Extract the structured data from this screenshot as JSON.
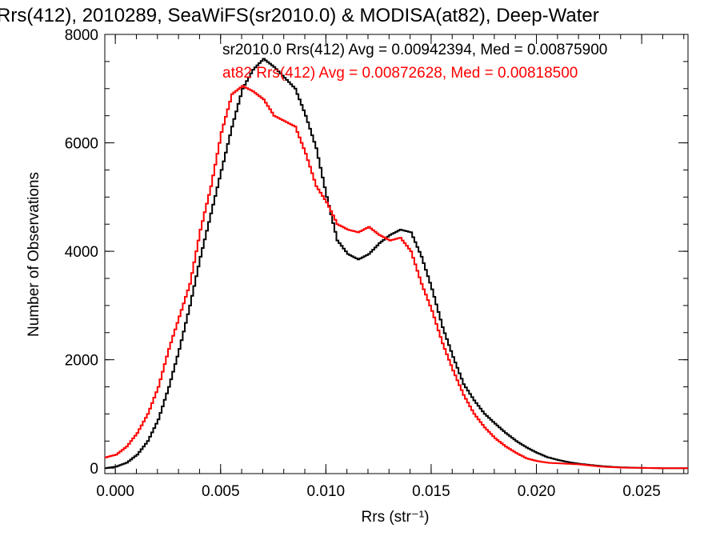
{
  "chart_data": {
    "type": "line",
    "title": "Rrs(412), 2010289, SeaWiFS(sr2010.0) & MODISA(at82), Deep-Water",
    "xlabel": "Rrs (str⁻¹)",
    "ylabel": "Number of Observations",
    "xlim": [
      -0.0005,
      0.0272
    ],
    "ylim": [
      -100,
      8000
    ],
    "x_ticks": [
      0.0,
      0.005,
      0.01,
      0.015,
      0.02,
      0.025
    ],
    "x_tick_labels": [
      "0.000",
      "0.005",
      "0.010",
      "0.015",
      "0.020",
      "0.025"
    ],
    "y_ticks": [
      0,
      2000,
      4000,
      6000,
      8000
    ],
    "y_tick_labels": [
      "0",
      "2000",
      "4000",
      "6000",
      "8000"
    ],
    "grid": false,
    "step": true,
    "annotations": [
      {
        "text": "sr2010.0 Rrs(412) Avg = 0.00942394, Med = 0.00875900",
        "color": "#000000"
      },
      {
        "text": "at82 Rrs(412) Avg = 0.00872628, Med = 0.00818500",
        "color": "#ff0000"
      }
    ],
    "series": [
      {
        "color": "#000000",
        "x": [
          -0.0005,
          0.0,
          0.0005,
          0.001,
          0.0015,
          0.002,
          0.0025,
          0.003,
          0.0035,
          0.004,
          0.0045,
          0.005,
          0.0055,
          0.006,
          0.0065,
          0.007,
          0.0075,
          0.008,
          0.0085,
          0.009,
          0.0095,
          0.01,
          0.0105,
          0.011,
          0.0115,
          0.012,
          0.0125,
          0.013,
          0.0135,
          0.014,
          0.0145,
          0.015,
          0.0155,
          0.016,
          0.0165,
          0.017,
          0.0175,
          0.018,
          0.0185,
          0.019,
          0.0195,
          0.02,
          0.0205,
          0.021,
          0.0215,
          0.022,
          0.0225,
          0.023,
          0.0235,
          0.024,
          0.025,
          0.026,
          0.0272
        ],
        "y": [
          0,
          30,
          100,
          250,
          500,
          900,
          1500,
          2200,
          3000,
          3900,
          4700,
          5500,
          6300,
          7000,
          7350,
          7550,
          7400,
          7200,
          7000,
          6500,
          5900,
          5000,
          4200,
          3950,
          3850,
          3950,
          4150,
          4300,
          4400,
          4350,
          3900,
          3300,
          2600,
          2050,
          1550,
          1250,
          1000,
          820,
          650,
          500,
          380,
          280,
          200,
          150,
          110,
          80,
          60,
          40,
          25,
          15,
          5,
          0,
          0
        ]
      },
      {
        "color": "#ff0000",
        "x": [
          -0.0005,
          0.0,
          0.0005,
          0.001,
          0.0015,
          0.002,
          0.0025,
          0.003,
          0.0035,
          0.004,
          0.0045,
          0.005,
          0.0055,
          0.006,
          0.0065,
          0.007,
          0.0075,
          0.008,
          0.0085,
          0.009,
          0.0095,
          0.01,
          0.0105,
          0.011,
          0.0115,
          0.012,
          0.0125,
          0.013,
          0.0135,
          0.014,
          0.0145,
          0.015,
          0.0155,
          0.016,
          0.0165,
          0.017,
          0.0175,
          0.018,
          0.0185,
          0.019,
          0.0195,
          0.02,
          0.0205,
          0.021,
          0.0215,
          0.022,
          0.0225,
          0.023,
          0.0235,
          0.024,
          0.025,
          0.026,
          0.0272
        ],
        "y": [
          200,
          250,
          400,
          650,
          1000,
          1500,
          2200,
          2800,
          3400,
          4400,
          5200,
          6200,
          6900,
          7050,
          6950,
          6800,
          6500,
          6400,
          6300,
          5800,
          5200,
          4900,
          4500,
          4400,
          4350,
          4450,
          4300,
          4200,
          4250,
          4000,
          3400,
          2900,
          2300,
          1800,
          1350,
          1000,
          750,
          550,
          400,
          280,
          180,
          130,
          100,
          90,
          80,
          70,
          50,
          30,
          20,
          10,
          5,
          0,
          0
        ]
      }
    ]
  }
}
